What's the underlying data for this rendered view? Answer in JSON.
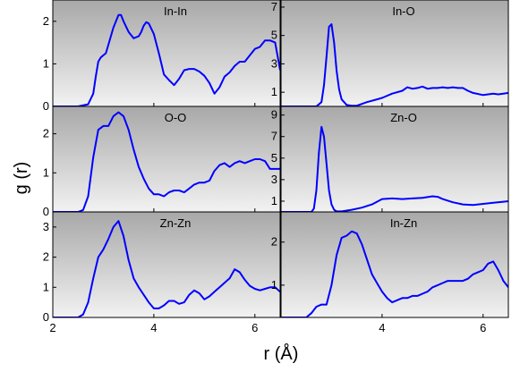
{
  "colors": {
    "line": "#0000ff",
    "axis": "#000000",
    "gradient_top": "#a8a8a8",
    "gradient_bottom": "#f2f2f2"
  },
  "axes": {
    "xlabel": "r (Å)",
    "ylabel": "g (r)",
    "xlim": [
      2,
      6.5
    ]
  },
  "chart_data": [
    {
      "type": "line",
      "title": "In-In",
      "xlim": [
        2,
        6.5
      ],
      "ylim": [
        0,
        2.5
      ],
      "x_ticks": [
        2,
        4,
        6
      ],
      "x_tick_labels": [
        "",
        "",
        ""
      ],
      "y_ticks": [
        0,
        1,
        2
      ],
      "y_tick_labels": [
        "0",
        "1",
        "2"
      ],
      "x": [
        2.0,
        2.5,
        2.7,
        2.8,
        2.85,
        2.9,
        2.95,
        3.0,
        3.05,
        3.1,
        3.2,
        3.3,
        3.35,
        3.4,
        3.5,
        3.6,
        3.7,
        3.75,
        3.8,
        3.85,
        3.9,
        4.0,
        4.1,
        4.2,
        4.3,
        4.4,
        4.5,
        4.6,
        4.7,
        4.8,
        4.9,
        5.0,
        5.1,
        5.2,
        5.3,
        5.4,
        5.5,
        5.6,
        5.7,
        5.8,
        5.9,
        6.0,
        6.1,
        6.2,
        6.3,
        6.4,
        6.5
      ],
      "y": [
        0.0,
        0.0,
        0.05,
        0.3,
        0.7,
        1.05,
        1.15,
        1.2,
        1.25,
        1.45,
        1.85,
        2.15,
        2.15,
        2.0,
        1.75,
        1.6,
        1.65,
        1.75,
        1.9,
        1.98,
        1.95,
        1.7,
        1.25,
        0.75,
        0.62,
        0.5,
        0.65,
        0.85,
        0.88,
        0.88,
        0.82,
        0.72,
        0.55,
        0.3,
        0.45,
        0.7,
        0.8,
        0.95,
        1.05,
        1.05,
        1.2,
        1.35,
        1.4,
        1.55,
        1.55,
        1.5,
        0.85
      ]
    },
    {
      "type": "line",
      "title": "In-O",
      "xlim": [
        2,
        6.5
      ],
      "ylim": [
        0,
        7.5
      ],
      "x_ticks": [
        2,
        4,
        6
      ],
      "x_tick_labels": [
        "",
        "",
        ""
      ],
      "y_ticks": [
        1,
        3,
        5,
        7
      ],
      "y_tick_labels": [
        "1",
        "3",
        "5",
        "7"
      ],
      "x": [
        2.0,
        2.7,
        2.8,
        2.85,
        2.9,
        2.95,
        3.0,
        3.05,
        3.1,
        3.15,
        3.2,
        3.3,
        3.4,
        3.5,
        3.7,
        3.9,
        4.0,
        4.2,
        4.4,
        4.5,
        4.6,
        4.7,
        4.8,
        4.9,
        5.0,
        5.1,
        5.2,
        5.3,
        5.4,
        5.5,
        5.6,
        5.7,
        5.8,
        6.0,
        6.1,
        6.2,
        6.3,
        6.4,
        6.5
      ],
      "y": [
        0.0,
        0.0,
        0.3,
        1.5,
        3.5,
        5.6,
        5.8,
        4.5,
        2.5,
        1.2,
        0.5,
        0.1,
        0.05,
        0.05,
        0.3,
        0.5,
        0.6,
        0.9,
        1.1,
        1.35,
        1.25,
        1.3,
        1.4,
        1.25,
        1.3,
        1.3,
        1.35,
        1.3,
        1.35,
        1.3,
        1.3,
        1.1,
        0.95,
        0.8,
        0.85,
        0.9,
        0.85,
        0.9,
        0.95
      ]
    },
    {
      "type": "line",
      "title": "O-O",
      "xlim": [
        2,
        6.5
      ],
      "ylim": [
        0,
        2.7
      ],
      "x_ticks": [
        2,
        4,
        6
      ],
      "x_tick_labels": [
        "",
        "",
        ""
      ],
      "y_ticks": [
        0,
        1,
        2
      ],
      "y_tick_labels": [
        "0",
        "1",
        "2"
      ],
      "x": [
        2.0,
        2.5,
        2.6,
        2.7,
        2.8,
        2.9,
        3.0,
        3.1,
        3.2,
        3.3,
        3.4,
        3.5,
        3.6,
        3.7,
        3.8,
        3.9,
        4.0,
        4.1,
        4.2,
        4.3,
        4.4,
        4.5,
        4.6,
        4.7,
        4.8,
        4.9,
        5.0,
        5.1,
        5.2,
        5.3,
        5.4,
        5.5,
        5.6,
        5.7,
        5.8,
        5.9,
        6.0,
        6.1,
        6.2,
        6.3,
        6.4,
        6.5
      ],
      "y": [
        0.0,
        0.0,
        0.05,
        0.4,
        1.4,
        2.1,
        2.2,
        2.2,
        2.45,
        2.55,
        2.45,
        2.1,
        1.6,
        1.15,
        0.85,
        0.6,
        0.45,
        0.45,
        0.4,
        0.5,
        0.55,
        0.55,
        0.5,
        0.6,
        0.7,
        0.75,
        0.75,
        0.8,
        1.05,
        1.2,
        1.25,
        1.15,
        1.25,
        1.3,
        1.25,
        1.3,
        1.35,
        1.35,
        1.3,
        1.1,
        1.1,
        1.1
      ]
    },
    {
      "type": "line",
      "title": "Zn-O",
      "xlim": [
        2,
        6.5
      ],
      "ylim": [
        0,
        9.8
      ],
      "x_ticks": [
        2,
        4,
        6
      ],
      "x_tick_labels": [
        "",
        "",
        ""
      ],
      "y_ticks": [
        1,
        3,
        5,
        7,
        9
      ],
      "y_tick_labels": [
        "1",
        "3",
        "5",
        "7",
        "9"
      ],
      "x": [
        2.0,
        2.6,
        2.65,
        2.7,
        2.75,
        2.8,
        2.85,
        2.9,
        2.95,
        3.0,
        3.05,
        3.1,
        3.2,
        3.4,
        3.6,
        3.8,
        4.0,
        4.2,
        4.4,
        4.6,
        4.8,
        5.0,
        5.1,
        5.2,
        5.4,
        5.6,
        5.8,
        6.0,
        6.2,
        6.4,
        6.5
      ],
      "y": [
        0.0,
        0.0,
        0.3,
        2.0,
        5.5,
        7.9,
        7.0,
        4.5,
        2.0,
        0.7,
        0.2,
        0.05,
        0.05,
        0.2,
        0.4,
        0.7,
        1.2,
        1.25,
        1.2,
        1.25,
        1.3,
        1.45,
        1.4,
        1.2,
        0.9,
        0.7,
        0.65,
        0.75,
        0.85,
        0.95,
        1.0
      ]
    },
    {
      "type": "line",
      "title": "Zn-Zn",
      "xlim": [
        2,
        6.5
      ],
      "ylim": [
        0,
        3.5
      ],
      "x_ticks": [
        2,
        4,
        6
      ],
      "x_tick_labels": [
        "2",
        "4",
        "6"
      ],
      "y_ticks": [
        0,
        1,
        2,
        3
      ],
      "y_tick_labels": [
        "0",
        "1",
        "2",
        "3"
      ],
      "x": [
        2.0,
        2.5,
        2.6,
        2.7,
        2.8,
        2.9,
        3.0,
        3.1,
        3.2,
        3.3,
        3.4,
        3.5,
        3.6,
        3.7,
        3.8,
        3.9,
        4.0,
        4.1,
        4.2,
        4.3,
        4.4,
        4.5,
        4.6,
        4.7,
        4.8,
        4.9,
        5.0,
        5.1,
        5.2,
        5.3,
        5.4,
        5.5,
        5.6,
        5.7,
        5.8,
        5.9,
        6.0,
        6.1,
        6.2,
        6.3,
        6.4,
        6.5
      ],
      "y": [
        0.0,
        0.0,
        0.1,
        0.5,
        1.3,
        2.0,
        2.25,
        2.6,
        3.0,
        3.2,
        2.7,
        1.9,
        1.3,
        1.0,
        0.75,
        0.5,
        0.3,
        0.3,
        0.4,
        0.55,
        0.55,
        0.45,
        0.5,
        0.75,
        0.9,
        0.8,
        0.6,
        0.7,
        0.85,
        1.0,
        1.15,
        1.3,
        1.6,
        1.5,
        1.25,
        1.05,
        0.95,
        0.9,
        0.95,
        1.0,
        1.0,
        0.85
      ]
    },
    {
      "type": "line",
      "title": "In-Zn",
      "xlim": [
        2,
        6.5
      ],
      "ylim": [
        0.25,
        2.7
      ],
      "x_ticks": [
        2,
        4,
        6
      ],
      "x_tick_labels": [
        "",
        "4",
        "6"
      ],
      "y_ticks": [
        1,
        2
      ],
      "y_tick_labels": [
        "1",
        "2"
      ],
      "x": [
        2.0,
        2.5,
        2.6,
        2.7,
        2.8,
        2.9,
        3.0,
        3.1,
        3.2,
        3.3,
        3.4,
        3.5,
        3.6,
        3.7,
        3.8,
        3.9,
        4.0,
        4.1,
        4.2,
        4.3,
        4.4,
        4.5,
        4.6,
        4.7,
        4.8,
        4.9,
        5.0,
        5.1,
        5.2,
        5.3,
        5.4,
        5.5,
        5.6,
        5.7,
        5.8,
        5.9,
        6.0,
        6.1,
        6.2,
        6.3,
        6.4,
        6.5
      ],
      "y": [
        0.25,
        0.25,
        0.35,
        0.5,
        0.55,
        0.55,
        1.0,
        1.7,
        2.1,
        2.15,
        2.25,
        2.2,
        1.95,
        1.6,
        1.25,
        1.05,
        0.85,
        0.7,
        0.6,
        0.65,
        0.7,
        0.7,
        0.75,
        0.75,
        0.8,
        0.85,
        0.95,
        1.0,
        1.05,
        1.1,
        1.1,
        1.1,
        1.1,
        1.15,
        1.25,
        1.3,
        1.35,
        1.5,
        1.55,
        1.35,
        1.1,
        0.95
      ]
    }
  ]
}
